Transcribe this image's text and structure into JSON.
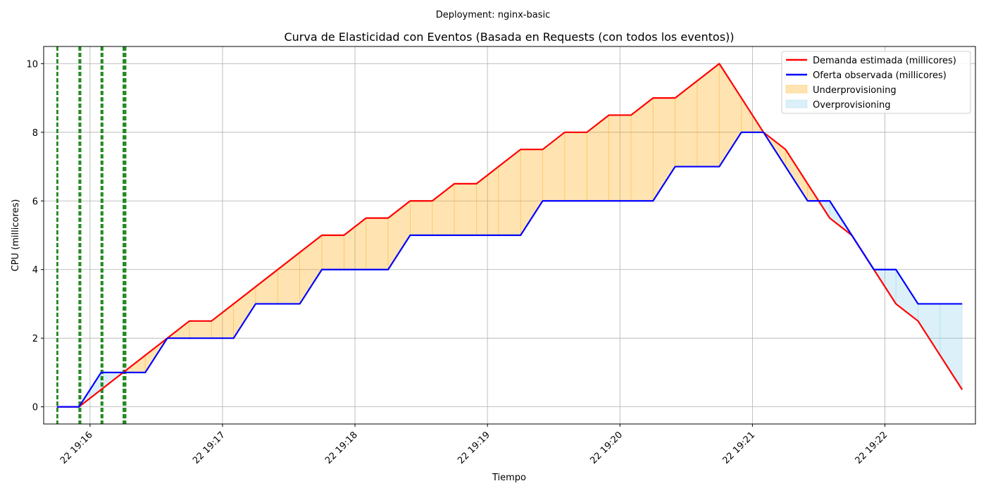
{
  "suptitle": "Deployment: nginx-basic",
  "chart_data": {
    "type": "line",
    "title": "Curva de Elasticidad con Eventos (Basada en Requests (con todos los eventos))",
    "xlabel": "Tiempo",
    "ylabel": "CPU (millicores)",
    "x_ticks": [
      {
        "t": "19:16",
        "label": "22 19:16"
      },
      {
        "t": "19:17",
        "label": "22 19:17"
      },
      {
        "t": "19:18",
        "label": "22 19:18"
      },
      {
        "t": "19:19",
        "label": "22 19:19"
      },
      {
        "t": "19:20",
        "label": "22 19:20"
      },
      {
        "t": "19:21",
        "label": "22 19:21"
      },
      {
        "t": "19:22",
        "label": "22 19:22"
      }
    ],
    "y_ticks": [
      0,
      2,
      4,
      6,
      8,
      10
    ],
    "ylim": [
      -0.5,
      10.5
    ],
    "xlim": [
      "19:15:39",
      "19:22:41"
    ],
    "grid": true,
    "legend_position": "upper right",
    "series": [
      {
        "name": "Demanda estimada (millicores)",
        "color": "#ff0000",
        "points": [
          [
            "19:15:45",
            0
          ],
          [
            "19:15:55",
            0
          ],
          [
            "19:16:05",
            0.5
          ],
          [
            "19:16:15",
            1
          ],
          [
            "19:16:25",
            1.5
          ],
          [
            "19:16:35",
            2
          ],
          [
            "19:16:45",
            2.5
          ],
          [
            "19:16:55",
            2.5
          ],
          [
            "19:17:05",
            3
          ],
          [
            "19:17:15",
            3.5
          ],
          [
            "19:17:25",
            4
          ],
          [
            "19:17:35",
            4.5
          ],
          [
            "19:17:45",
            5
          ],
          [
            "19:17:55",
            5
          ],
          [
            "19:18:05",
            5.5
          ],
          [
            "19:18:15",
            5.5
          ],
          [
            "19:18:25",
            6
          ],
          [
            "19:18:35",
            6
          ],
          [
            "19:18:45",
            6.5
          ],
          [
            "19:18:55",
            6.5
          ],
          [
            "19:19:05",
            7
          ],
          [
            "19:19:15",
            7.5
          ],
          [
            "19:19:25",
            7.5
          ],
          [
            "19:19:35",
            8
          ],
          [
            "19:19:45",
            8
          ],
          [
            "19:19:55",
            8.5
          ],
          [
            "19:20:05",
            8.5
          ],
          [
            "19:20:15",
            9
          ],
          [
            "19:20:25",
            9
          ],
          [
            "19:20:35",
            9.5
          ],
          [
            "19:20:45",
            10
          ],
          [
            "19:20:55",
            9
          ],
          [
            "19:21:05",
            8
          ],
          [
            "19:21:15",
            7.5
          ],
          [
            "19:21:25",
            6.5
          ],
          [
            "19:21:35",
            5.5
          ],
          [
            "19:21:45",
            5
          ],
          [
            "19:21:55",
            4
          ],
          [
            "19:22:05",
            3
          ],
          [
            "19:22:15",
            2.5
          ],
          [
            "19:22:25",
            1.5
          ],
          [
            "19:22:35",
            0.5
          ]
        ]
      },
      {
        "name": "Oferta observada (millicores)",
        "color": "#0000ff",
        "points": [
          [
            "19:15:45",
            0
          ],
          [
            "19:15:55",
            0
          ],
          [
            "19:16:05",
            1
          ],
          [
            "19:16:15",
            1
          ],
          [
            "19:16:25",
            1
          ],
          [
            "19:16:35",
            2
          ],
          [
            "19:16:45",
            2
          ],
          [
            "19:16:55",
            2
          ],
          [
            "19:17:05",
            2
          ],
          [
            "19:17:15",
            3
          ],
          [
            "19:17:25",
            3
          ],
          [
            "19:17:35",
            3
          ],
          [
            "19:17:45",
            4
          ],
          [
            "19:17:55",
            4
          ],
          [
            "19:18:05",
            4
          ],
          [
            "19:18:15",
            4
          ],
          [
            "19:18:25",
            5
          ],
          [
            "19:18:35",
            5
          ],
          [
            "19:18:45",
            5
          ],
          [
            "19:18:55",
            5
          ],
          [
            "19:19:05",
            5
          ],
          [
            "19:19:15",
            5
          ],
          [
            "19:19:25",
            6
          ],
          [
            "19:19:35",
            6
          ],
          [
            "19:19:45",
            6
          ],
          [
            "19:19:55",
            6
          ],
          [
            "19:20:05",
            6
          ],
          [
            "19:20:15",
            6
          ],
          [
            "19:20:25",
            7
          ],
          [
            "19:20:35",
            7
          ],
          [
            "19:20:45",
            7
          ],
          [
            "19:20:55",
            8
          ],
          [
            "19:21:05",
            8
          ],
          [
            "19:21:15",
            7
          ],
          [
            "19:21:25",
            6
          ],
          [
            "19:21:35",
            6
          ],
          [
            "19:21:45",
            5
          ],
          [
            "19:21:55",
            4
          ],
          [
            "19:22:05",
            4
          ],
          [
            "19:22:15",
            3
          ],
          [
            "19:22:25",
            3
          ],
          [
            "19:22:35",
            3
          ]
        ]
      }
    ],
    "fills": [
      {
        "name": "Underprovisioning",
        "color": "#ffa500",
        "opacity": 0.3,
        "when": "demand_above_supply"
      },
      {
        "name": "Overprovisioning",
        "color": "#87ceeb",
        "opacity": 0.3,
        "when": "supply_above_demand"
      }
    ],
    "event_lines": {
      "color": "#228b22",
      "style": "dashed",
      "times": [
        "19:15:45.0",
        "19:15:45.4",
        "19:15:55.0",
        "19:15:55.4",
        "19:15:55.8",
        "19:16:05.0",
        "19:16:05.4",
        "19:16:05.8",
        "19:16:15.0",
        "19:16:15.4",
        "19:16:15.8",
        "19:16:16.2"
      ]
    }
  }
}
